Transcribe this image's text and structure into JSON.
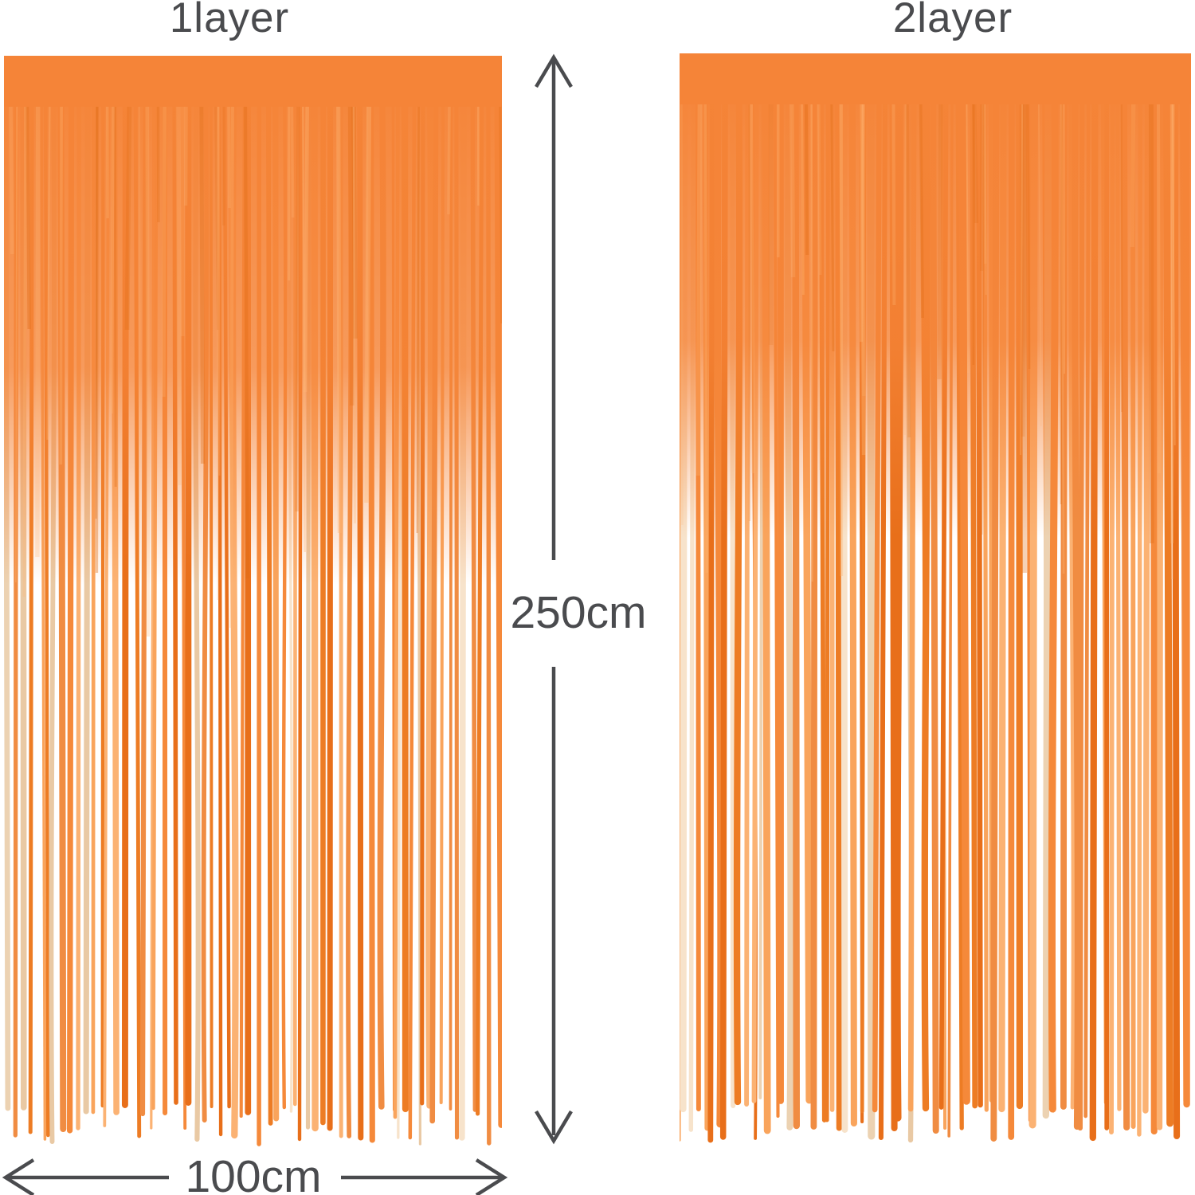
{
  "labels": {
    "left_curtain": "1layer",
    "right_curtain": "2layer"
  },
  "dimensions": {
    "height_label": "250cm",
    "width_label": "100cm"
  },
  "colors": {
    "background": "#ffffff",
    "annotation": "#4a4b4e",
    "curtain_base": "#f58438",
    "strip_palette": [
      "#e86f1a",
      "#ed7c24",
      "#f5893a",
      "#f08c42",
      "#f9a45c",
      "#fbb273"
    ],
    "shine_palette": [
      "#ecd2b2",
      "#e9c9a4",
      "#f7e3cb"
    ],
    "texture_light": "#ffb877",
    "texture_dark": "#e06c14"
  }
}
